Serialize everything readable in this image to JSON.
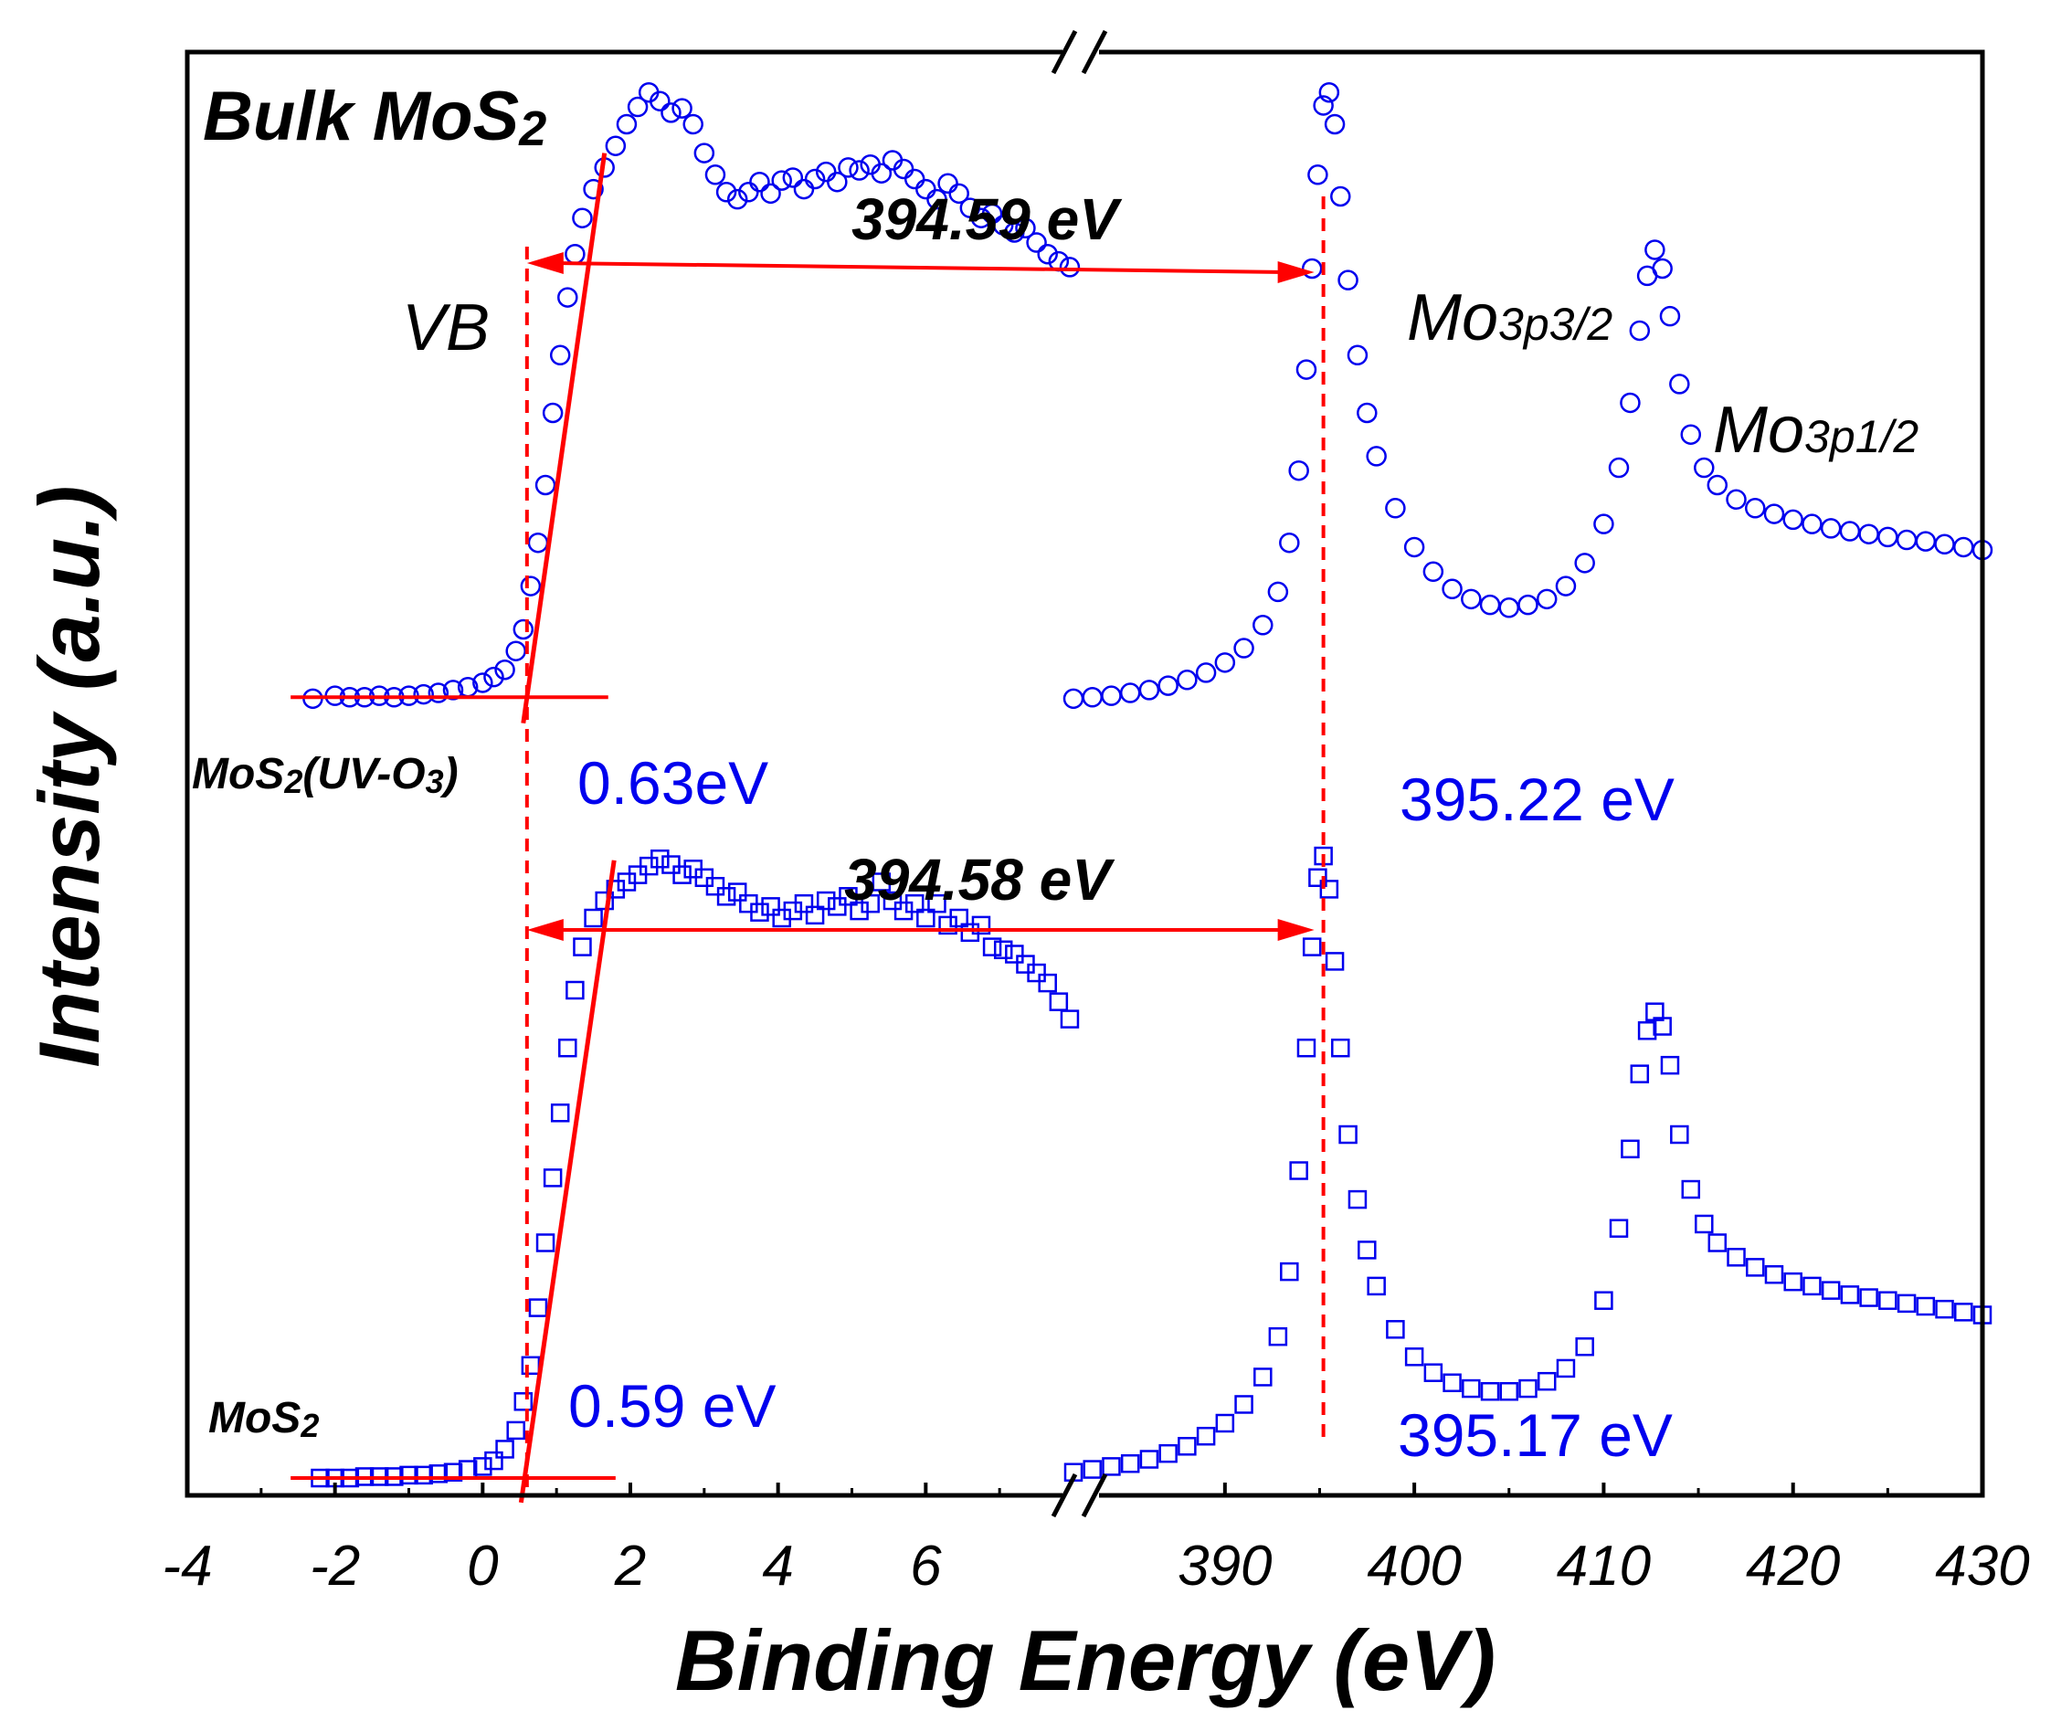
{
  "chart_data": {
    "type": "scatter",
    "title": "Bulk MoS2",
    "xlabel": "Binding Energy (eV)",
    "ylabel": "Intensity (a.u.)",
    "x_axis": {
      "broken": true,
      "segments": [
        {
          "range": [
            -4,
            8
          ],
          "ticks": [
            -4,
            -2,
            0,
            2,
            4,
            6
          ],
          "tick_labels": [
            "-4",
            "-2",
            "0",
            "2",
            "4",
            "6"
          ]
        },
        {
          "range": [
            382,
            430
          ],
          "ticks": [
            390,
            400,
            410,
            420,
            430
          ],
          "tick_labels": [
            "390",
            "400",
            "410",
            "420",
            "430"
          ]
        }
      ]
    },
    "y_axis": {
      "ticks": false,
      "range": [
        0,
        1
      ]
    },
    "series": [
      {
        "name": "MoS2(UV-O3)",
        "marker": "circle",
        "color": "#0000ee",
        "label_prefix": "MoS",
        "label_sub": "2",
        "label_mid": "(UV-O",
        "label_sub2": "3",
        "label_suffix": ")",
        "vb_points": [
          [
            -2.3,
            0.552
          ],
          [
            -2.0,
            0.554
          ],
          [
            -1.8,
            0.553
          ],
          [
            -1.6,
            0.553
          ],
          [
            -1.4,
            0.554
          ],
          [
            -1.2,
            0.553
          ],
          [
            -1.0,
            0.554
          ],
          [
            -0.8,
            0.555
          ],
          [
            -0.6,
            0.556
          ],
          [
            -0.4,
            0.558
          ],
          [
            -0.2,
            0.56
          ],
          [
            0.0,
            0.563
          ],
          [
            0.15,
            0.567
          ],
          [
            0.3,
            0.572
          ],
          [
            0.45,
            0.585
          ],
          [
            0.55,
            0.6
          ],
          [
            0.65,
            0.63
          ],
          [
            0.75,
            0.66
          ],
          [
            0.85,
            0.7
          ],
          [
            0.95,
            0.75
          ],
          [
            1.05,
            0.79
          ],
          [
            1.15,
            0.83
          ],
          [
            1.25,
            0.86
          ],
          [
            1.35,
            0.885
          ],
          [
            1.5,
            0.905
          ],
          [
            1.65,
            0.92
          ],
          [
            1.8,
            0.935
          ],
          [
            1.95,
            0.95
          ],
          [
            2.1,
            0.962
          ],
          [
            2.25,
            0.972
          ],
          [
            2.4,
            0.966
          ],
          [
            2.55,
            0.958
          ],
          [
            2.7,
            0.961
          ],
          [
            2.85,
            0.95
          ],
          [
            3.0,
            0.93
          ],
          [
            3.15,
            0.915
          ],
          [
            3.3,
            0.903
          ],
          [
            3.45,
            0.898
          ],
          [
            3.6,
            0.903
          ],
          [
            3.75,
            0.91
          ],
          [
            3.9,
            0.902
          ],
          [
            4.05,
            0.911
          ],
          [
            4.2,
            0.913
          ],
          [
            4.35,
            0.905
          ],
          [
            4.5,
            0.912
          ],
          [
            4.65,
            0.917
          ],
          [
            4.8,
            0.91
          ],
          [
            4.95,
            0.92
          ],
          [
            5.1,
            0.918
          ],
          [
            5.25,
            0.922
          ],
          [
            5.4,
            0.916
          ],
          [
            5.55,
            0.925
          ],
          [
            5.7,
            0.919
          ],
          [
            5.85,
            0.912
          ],
          [
            6.0,
            0.905
          ],
          [
            6.15,
            0.898
          ],
          [
            6.3,
            0.909
          ],
          [
            6.45,
            0.902
          ],
          [
            6.6,
            0.892
          ],
          [
            6.75,
            0.885
          ],
          [
            6.9,
            0.888
          ],
          [
            7.05,
            0.88
          ],
          [
            7.2,
            0.875
          ],
          [
            7.35,
            0.878
          ],
          [
            7.5,
            0.868
          ],
          [
            7.65,
            0.86
          ],
          [
            7.8,
            0.855
          ],
          [
            7.95,
            0.851
          ]
        ],
        "core_points": [
          [
            382.0,
            0.552
          ],
          [
            383.0,
            0.553
          ],
          [
            384.0,
            0.554
          ],
          [
            385.0,
            0.556
          ],
          [
            386.0,
            0.558
          ],
          [
            387.0,
            0.561
          ],
          [
            388.0,
            0.565
          ],
          [
            389.0,
            0.57
          ],
          [
            390.0,
            0.577
          ],
          [
            391.0,
            0.587
          ],
          [
            392.0,
            0.603
          ],
          [
            392.8,
            0.626
          ],
          [
            393.4,
            0.66
          ],
          [
            393.9,
            0.71
          ],
          [
            394.3,
            0.78
          ],
          [
            394.6,
            0.85
          ],
          [
            394.9,
            0.915
          ],
          [
            395.2,
            0.963
          ],
          [
            395.5,
            0.972
          ],
          [
            395.8,
            0.95
          ],
          [
            396.1,
            0.9
          ],
          [
            396.5,
            0.842
          ],
          [
            397.0,
            0.79
          ],
          [
            397.5,
            0.75
          ],
          [
            398.0,
            0.72
          ],
          [
            399.0,
            0.684
          ],
          [
            400.0,
            0.657
          ],
          [
            401.0,
            0.64
          ],
          [
            402.0,
            0.628
          ],
          [
            403.0,
            0.621
          ],
          [
            404.0,
            0.617
          ],
          [
            405.0,
            0.615
          ],
          [
            406.0,
            0.617
          ],
          [
            407.0,
            0.621
          ],
          [
            408.0,
            0.63
          ],
          [
            409.0,
            0.646
          ],
          [
            410.0,
            0.673
          ],
          [
            410.8,
            0.712
          ],
          [
            411.4,
            0.757
          ],
          [
            411.9,
            0.807
          ],
          [
            412.3,
            0.845
          ],
          [
            412.7,
            0.863
          ],
          [
            413.1,
            0.85
          ],
          [
            413.5,
            0.817
          ],
          [
            414.0,
            0.77
          ],
          [
            414.6,
            0.735
          ],
          [
            415.3,
            0.712
          ],
          [
            416.0,
            0.7
          ],
          [
            417.0,
            0.69
          ],
          [
            418.0,
            0.684
          ],
          [
            419.0,
            0.68
          ],
          [
            420.0,
            0.676
          ],
          [
            421.0,
            0.673
          ],
          [
            422.0,
            0.67
          ],
          [
            423.0,
            0.668
          ],
          [
            424.0,
            0.666
          ],
          [
            425.0,
            0.664
          ],
          [
            426.0,
            0.662
          ],
          [
            427.0,
            0.661
          ],
          [
            428.0,
            0.659
          ],
          [
            429.0,
            0.657
          ],
          [
            430.0,
            0.655
          ]
        ],
        "vb_onset_label": "0.63eV",
        "core_peak_label": "395.22 eV",
        "separation_label": "394.59 eV"
      },
      {
        "name": "MoS2",
        "marker": "square",
        "color": "#0000ee",
        "label_prefix": "MoS",
        "label_sub": "2",
        "vb_points": [
          [
            -2.2,
            0.012
          ],
          [
            -2.0,
            0.012
          ],
          [
            -1.8,
            0.012
          ],
          [
            -1.6,
            0.013
          ],
          [
            -1.4,
            0.013
          ],
          [
            -1.2,
            0.013
          ],
          [
            -1.0,
            0.014
          ],
          [
            -0.8,
            0.014
          ],
          [
            -0.6,
            0.015
          ],
          [
            -0.4,
            0.016
          ],
          [
            -0.2,
            0.018
          ],
          [
            0.0,
            0.02
          ],
          [
            0.15,
            0.024
          ],
          [
            0.3,
            0.032
          ],
          [
            0.45,
            0.045
          ],
          [
            0.55,
            0.065
          ],
          [
            0.65,
            0.09
          ],
          [
            0.75,
            0.13
          ],
          [
            0.85,
            0.175
          ],
          [
            0.95,
            0.22
          ],
          [
            1.05,
            0.265
          ],
          [
            1.15,
            0.31
          ],
          [
            1.25,
            0.35
          ],
          [
            1.35,
            0.38
          ],
          [
            1.5,
            0.4
          ],
          [
            1.65,
            0.412
          ],
          [
            1.8,
            0.42
          ],
          [
            1.95,
            0.425
          ],
          [
            2.1,
            0.43
          ],
          [
            2.25,
            0.436
          ],
          [
            2.4,
            0.441
          ],
          [
            2.55,
            0.437
          ],
          [
            2.7,
            0.43
          ],
          [
            2.85,
            0.434
          ],
          [
            3.0,
            0.428
          ],
          [
            3.15,
            0.422
          ],
          [
            3.3,
            0.415
          ],
          [
            3.45,
            0.418
          ],
          [
            3.6,
            0.41
          ],
          [
            3.75,
            0.404
          ],
          [
            3.9,
            0.408
          ],
          [
            4.05,
            0.4
          ],
          [
            4.2,
            0.405
          ],
          [
            4.35,
            0.41
          ],
          [
            4.5,
            0.402
          ],
          [
            4.65,
            0.412
          ],
          [
            4.8,
            0.408
          ],
          [
            4.95,
            0.415
          ],
          [
            5.1,
            0.405
          ],
          [
            5.25,
            0.41
          ],
          [
            5.4,
            0.425
          ],
          [
            5.55,
            0.412
          ],
          [
            5.7,
            0.405
          ],
          [
            5.85,
            0.41
          ],
          [
            6.0,
            0.4
          ],
          [
            6.15,
            0.41
          ],
          [
            6.3,
            0.395
          ],
          [
            6.45,
            0.4
          ],
          [
            6.6,
            0.39
          ],
          [
            6.75,
            0.395
          ],
          [
            6.9,
            0.38
          ],
          [
            7.05,
            0.378
          ],
          [
            7.2,
            0.375
          ],
          [
            7.35,
            0.368
          ],
          [
            7.5,
            0.362
          ],
          [
            7.65,
            0.355
          ],
          [
            7.8,
            0.342
          ],
          [
            7.95,
            0.33
          ]
        ],
        "core_points": [
          [
            382.0,
            0.016
          ],
          [
            383.0,
            0.018
          ],
          [
            384.0,
            0.02
          ],
          [
            385.0,
            0.022
          ],
          [
            386.0,
            0.025
          ],
          [
            387.0,
            0.029
          ],
          [
            388.0,
            0.034
          ],
          [
            389.0,
            0.041
          ],
          [
            390.0,
            0.05
          ],
          [
            391.0,
            0.063
          ],
          [
            392.0,
            0.082
          ],
          [
            392.8,
            0.11
          ],
          [
            393.4,
            0.155
          ],
          [
            393.9,
            0.225
          ],
          [
            394.3,
            0.31
          ],
          [
            394.6,
            0.38
          ],
          [
            394.9,
            0.428
          ],
          [
            395.2,
            0.443
          ],
          [
            395.5,
            0.42
          ],
          [
            395.8,
            0.37
          ],
          [
            396.1,
            0.31
          ],
          [
            396.5,
            0.25
          ],
          [
            397.0,
            0.205
          ],
          [
            397.5,
            0.17
          ],
          [
            398.0,
            0.145
          ],
          [
            399.0,
            0.115
          ],
          [
            400.0,
            0.096
          ],
          [
            401.0,
            0.085
          ],
          [
            402.0,
            0.078
          ],
          [
            403.0,
            0.074
          ],
          [
            404.0,
            0.072
          ],
          [
            405.0,
            0.072
          ],
          [
            406.0,
            0.074
          ],
          [
            407.0,
            0.079
          ],
          [
            408.0,
            0.088
          ],
          [
            409.0,
            0.103
          ],
          [
            410.0,
            0.135
          ],
          [
            410.8,
            0.185
          ],
          [
            411.4,
            0.24
          ],
          [
            411.9,
            0.292
          ],
          [
            412.3,
            0.322
          ],
          [
            412.7,
            0.335
          ],
          [
            413.1,
            0.325
          ],
          [
            413.5,
            0.298
          ],
          [
            414.0,
            0.25
          ],
          [
            414.6,
            0.212
          ],
          [
            415.3,
            0.188
          ],
          [
            416.0,
            0.175
          ],
          [
            417.0,
            0.165
          ],
          [
            418.0,
            0.158
          ],
          [
            419.0,
            0.153
          ],
          [
            420.0,
            0.148
          ],
          [
            421.0,
            0.145
          ],
          [
            422.0,
            0.142
          ],
          [
            423.0,
            0.139
          ],
          [
            424.0,
            0.137
          ],
          [
            425.0,
            0.135
          ],
          [
            426.0,
            0.133
          ],
          [
            427.0,
            0.131
          ],
          [
            428.0,
            0.129
          ],
          [
            429.0,
            0.127
          ],
          [
            430.0,
            0.125
          ]
        ],
        "vb_onset_label": "0.59 eV",
        "core_peak_label": "395.17 eV",
        "separation_label": "394.58 eV"
      }
    ],
    "annotations": {
      "vb_label": "VB",
      "peak_3p32_prefix": "Mo",
      "peak_3p32_sub": "3p3/2",
      "peak_3p12_prefix": "Mo",
      "peak_3p12_sub": "3p1/2",
      "title_prefix": "Bulk MoS",
      "title_sub": "2",
      "vb_onset_energy": 0.6,
      "core_peak_energy": 395.2,
      "line_color": "#ff0000"
    }
  }
}
